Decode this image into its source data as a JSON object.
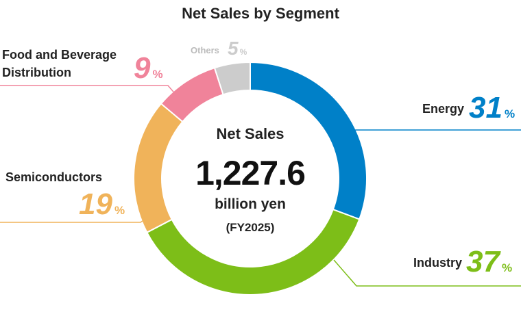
{
  "chart_data": {
    "type": "pie",
    "title": "Net Sales by Segment",
    "unit": "%",
    "segments": [
      {
        "name": "Energy",
        "value": 31,
        "color": "#0080C8"
      },
      {
        "name": "Industry",
        "value": 37,
        "color": "#7DBE18"
      },
      {
        "name": "Semiconductors",
        "value": 19,
        "color": "#F0B35A"
      },
      {
        "name": "Food and Beverage Distribution",
        "name_lines": [
          "Food and Beverage",
          "Distribution"
        ],
        "value": 9,
        "color": "#F0839A"
      },
      {
        "name": "Others",
        "value": 5,
        "color": "#CCCCCC"
      }
    ],
    "center": {
      "label": "Net Sales",
      "value": "1,227.6",
      "unit": "billion yen",
      "period": "(FY2025)"
    }
  }
}
